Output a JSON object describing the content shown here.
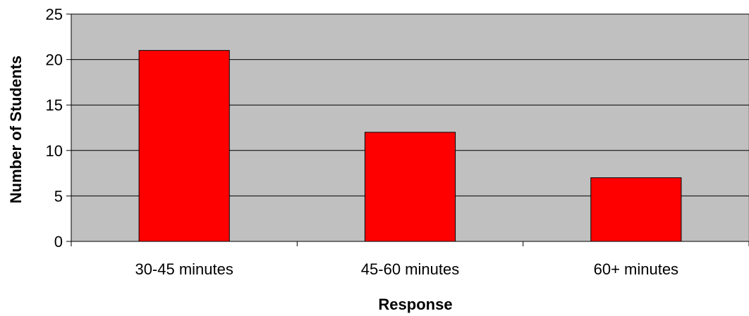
{
  "chart_data": {
    "type": "bar",
    "title": "",
    "xlabel": "Response",
    "ylabel": "Number of Students",
    "categories": [
      "30-45 minutes",
      "45-60 minutes",
      "60+ minutes"
    ],
    "values": [
      21,
      12,
      7
    ],
    "ylim": [
      0,
      25
    ],
    "yticks": [
      0,
      5,
      10,
      15,
      20,
      25
    ],
    "grid": true,
    "legend": "none",
    "bar_color": "#ff0000",
    "plot_background": "#c0c0c0"
  }
}
